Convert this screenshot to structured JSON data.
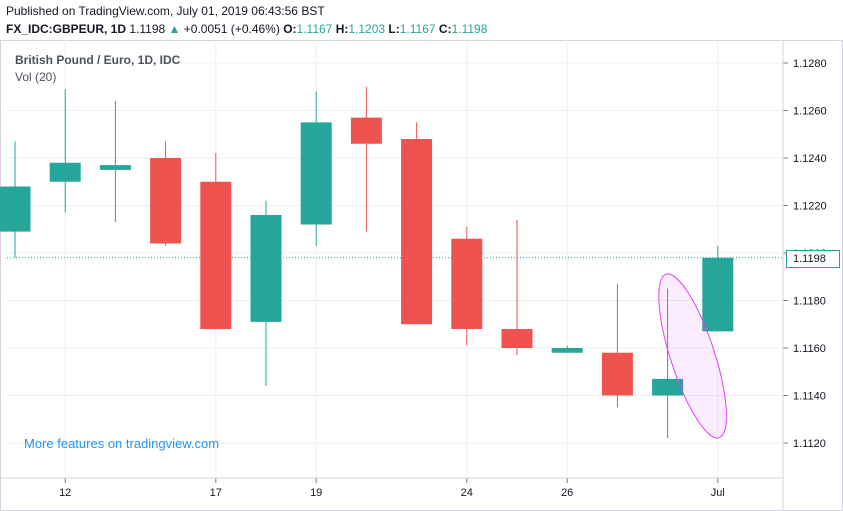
{
  "header": {
    "published": "Published on TradingView.com, July 01, 2019 06:43:56 BST",
    "symbol": "FX_IDC:GBPEUR, 1D",
    "last": "1.1198",
    "change_arrow": "▲",
    "change": "+0.0051 (+0.46%)",
    "o_label": "O:",
    "o_value": "1.1167",
    "h_label": "H:",
    "h_value": "1.1203",
    "l_label": "L:",
    "l_value": "1.1167",
    "c_label": "C:",
    "c_value": "1.1198"
  },
  "legend": {
    "title": "British Pound / Euro, 1D, IDC",
    "indicator": "Vol (20)"
  },
  "promo": "More features on tradingview.com",
  "last_price_label": "1.1198",
  "colors": {
    "up": "#26a69a",
    "down": "#ef5350",
    "grid": "#eef0f3",
    "annotation": "#e040fb"
  },
  "chart_data": {
    "type": "candlestick",
    "title": "British Pound / Euro, 1D, IDC",
    "ylim": [
      1.111,
      1.129
    ],
    "y_ticks": [
      "1.1120",
      "1.1140",
      "1.1160",
      "1.1180",
      "1.1200",
      "1.1220",
      "1.1240",
      "1.1260",
      "1.1280"
    ],
    "x_ticks": [
      {
        "label": "12",
        "at": 1
      },
      {
        "label": "17",
        "at": 4
      },
      {
        "label": "19",
        "at": 6
      },
      {
        "label": "24",
        "at": 9
      },
      {
        "label": "26",
        "at": 11
      },
      {
        "label": "Jul",
        "at": 14
      }
    ],
    "candles": [
      {
        "i": 0,
        "o": 1.1209,
        "h": 1.1247,
        "l": 1.1198,
        "c": 1.1228
      },
      {
        "i": 1,
        "o": 1.123,
        "h": 1.1269,
        "l": 1.1217,
        "c": 1.1238
      },
      {
        "i": 2,
        "o": 1.1235,
        "h": 1.1264,
        "l": 1.1213,
        "c": 1.1237
      },
      {
        "i": 3,
        "o": 1.124,
        "h": 1.1247,
        "l": 1.1203,
        "c": 1.1204
      },
      {
        "i": 4,
        "o": 1.123,
        "h": 1.1242,
        "l": 1.1168,
        "c": 1.1168
      },
      {
        "i": 5,
        "o": 1.1171,
        "h": 1.1222,
        "l": 1.1144,
        "c": 1.1216
      },
      {
        "i": 6,
        "o": 1.1212,
        "h": 1.1268,
        "l": 1.1203,
        "c": 1.1255
      },
      {
        "i": 7,
        "o": 1.1257,
        "h": 1.127,
        "l": 1.1209,
        "c": 1.1246
      },
      {
        "i": 8,
        "o": 1.1248,
        "h": 1.1255,
        "l": 1.117,
        "c": 1.117
      },
      {
        "i": 9,
        "o": 1.1206,
        "h": 1.1211,
        "l": 1.1161,
        "c": 1.1168
      },
      {
        "i": 10,
        "o": 1.1168,
        "h": 1.1214,
        "l": 1.1157,
        "c": 1.116
      },
      {
        "i": 11,
        "o": 1.1158,
        "h": 1.1161,
        "l": 1.1158,
        "c": 1.116
      },
      {
        "i": 12,
        "o": 1.1158,
        "h": 1.1187,
        "l": 1.1135,
        "c": 1.114
      },
      {
        "i": 13,
        "o": 1.114,
        "h": 1.1185,
        "l": 1.1122,
        "c": 1.1147
      },
      {
        "i": 14,
        "o": 1.1167,
        "h": 1.1203,
        "l": 1.1167,
        "c": 1.1198
      }
    ],
    "last_price": 1.1198,
    "annotation": {
      "shape": "ellipse",
      "near_candle": 13
    }
  }
}
